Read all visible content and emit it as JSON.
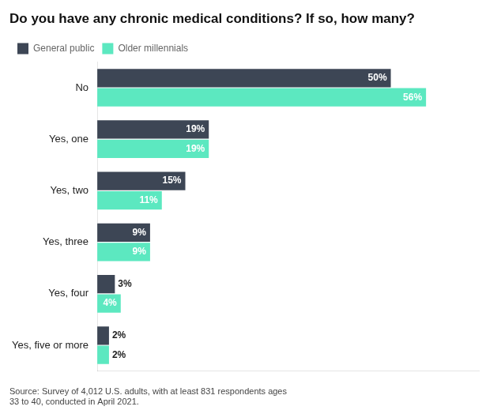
{
  "chart_data": {
    "type": "bar",
    "orientation": "horizontal",
    "title": "Do you have any chronic medical conditions? If so, how many?",
    "categories": [
      "No",
      "Yes, one",
      "Yes, two",
      "Yes, three",
      "Yes, four",
      "Yes, five or more"
    ],
    "series": [
      {
        "name": "General public",
        "color": "#3d4655",
        "values": [
          50,
          19,
          15,
          9,
          3,
          2
        ],
        "value_labels": [
          "50%",
          "19%",
          "15%",
          "9%",
          "3%",
          "2%"
        ]
      },
      {
        "name": "Older millennials",
        "color": "#5ce8c0",
        "values": [
          56,
          19,
          11,
          9,
          4,
          2
        ],
        "value_labels": [
          "56%",
          "19%",
          "11%",
          "9%",
          "4%",
          "2%"
        ]
      }
    ],
    "xlim": [
      0,
      65
    ],
    "grid": false,
    "legend": "upper left",
    "data_labels": true,
    "tick_labels": "y",
    "annotations": [
      "Source: Survey of 4,012 U.S. adults, with at least 831 respondents ages\n33 to 40, conducted in April 2021."
    ]
  }
}
